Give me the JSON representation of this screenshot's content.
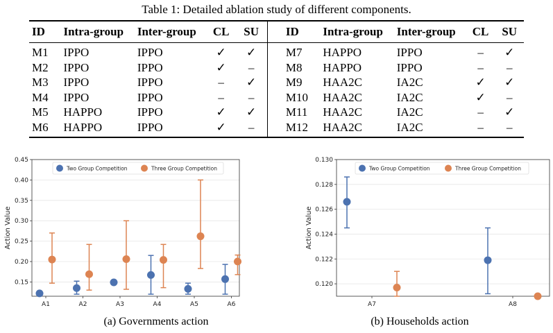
{
  "table": {
    "caption": "Table 1: Detailed ablation study of different components.",
    "headers": [
      "ID",
      "Intra-group",
      "Inter-group",
      "CL",
      "SU",
      "ID",
      "Intra-group",
      "Inter-group",
      "CL",
      "SU"
    ],
    "rows": [
      [
        "M1",
        "IPPO",
        "IPPO",
        "✓",
        "✓",
        "M7",
        "HAPPO",
        "IPPO",
        "–",
        "✓"
      ],
      [
        "M2",
        "IPPO",
        "IPPO",
        "✓",
        "–",
        "M8",
        "HAPPO",
        "IPPO",
        "–",
        "–"
      ],
      [
        "M3",
        "IPPO",
        "IPPO",
        "–",
        "✓",
        "M9",
        "HAA2C",
        "IA2C",
        "✓",
        "✓"
      ],
      [
        "M4",
        "IPPO",
        "IPPO",
        "–",
        "–",
        "M10",
        "HAA2C",
        "IA2C",
        "✓",
        "–"
      ],
      [
        "M5",
        "HAPPO",
        "IPPO",
        "✓",
        "✓",
        "M11",
        "HAA2C",
        "IA2C",
        "–",
        "✓"
      ],
      [
        "M6",
        "HAPPO",
        "IPPO",
        "✓",
        "–",
        "M12",
        "HAA2C",
        "IA2C",
        "–",
        "–"
      ]
    ]
  },
  "captions": {
    "a": "(a) Governments action",
    "b": "(b) Households action"
  },
  "colors": {
    "two": "#4c72b0",
    "three": "#dd8452"
  },
  "chart_data": [
    {
      "type": "scatter",
      "title": "",
      "xlabel": "",
      "ylabel": "Action Value",
      "categories": [
        "A1",
        "A2",
        "A3",
        "A4",
        "A5",
        "A6"
      ],
      "ylim": [
        0.115,
        0.45
      ],
      "yticks": [
        0.15,
        0.2,
        0.25,
        0.3,
        0.35,
        0.4,
        0.45
      ],
      "ytick_labels": [
        "0.15",
        "0.20",
        "0.25",
        "0.30",
        "0.35",
        "0.40",
        "0.45"
      ],
      "grid": true,
      "legend": "top-center",
      "series": [
        {
          "name": "Two Group Competition",
          "points": [
            {
              "x": "A1",
              "y": 0.122,
              "lo": 0.122,
              "hi": 0.122
            },
            {
              "x": "A2",
              "y": 0.135,
              "lo": 0.12,
              "hi": 0.152
            },
            {
              "x": "A3",
              "y": 0.149,
              "lo": 0.149,
              "hi": 0.149
            },
            {
              "x": "A4",
              "y": 0.167,
              "lo": 0.12,
              "hi": 0.215
            },
            {
              "x": "A5",
              "y": 0.133,
              "lo": 0.12,
              "hi": 0.147
            },
            {
              "x": "A6",
              "y": 0.157,
              "lo": 0.12,
              "hi": 0.193
            }
          ]
        },
        {
          "name": "Three Group Competition",
          "points": [
            {
              "x": "A1",
              "y": 0.205,
              "lo": 0.147,
              "hi": 0.27
            },
            {
              "x": "A2",
              "y": 0.169,
              "lo": 0.13,
              "hi": 0.242
            },
            {
              "x": "A3",
              "y": 0.206,
              "lo": 0.132,
              "hi": 0.3
            },
            {
              "x": "A4",
              "y": 0.204,
              "lo": 0.136,
              "hi": 0.242
            },
            {
              "x": "A5",
              "y": 0.262,
              "lo": 0.183,
              "hi": 0.4
            },
            {
              "x": "A6",
              "y": 0.2,
              "lo": 0.168,
              "hi": 0.216
            }
          ]
        }
      ]
    },
    {
      "type": "scatter",
      "title": "",
      "xlabel": "",
      "ylabel": "Action Value",
      "categories": [
        "A7",
        "A8"
      ],
      "ylim": [
        0.119,
        0.13
      ],
      "yticks": [
        0.12,
        0.122,
        0.124,
        0.126,
        0.128,
        0.13
      ],
      "ytick_labels": [
        "0.120",
        "0.122",
        "0.124",
        "0.126",
        "0.128",
        "0.130"
      ],
      "grid": true,
      "legend": "top-center",
      "series": [
        {
          "name": "Two Group Competition",
          "points": [
            {
              "x": "A7",
              "y": 0.1266,
              "lo": 0.1245,
              "hi": 0.1286
            },
            {
              "x": "A8",
              "y": 0.1219,
              "lo": 0.1192,
              "hi": 0.1245
            }
          ]
        },
        {
          "name": "Three Group Competition",
          "points": [
            {
              "x": "A7",
              "y": 0.1197,
              "lo": 0.119,
              "hi": 0.121
            },
            {
              "x": "A8",
              "y": 0.119,
              "lo": 0.119,
              "hi": 0.119
            }
          ]
        }
      ]
    }
  ]
}
